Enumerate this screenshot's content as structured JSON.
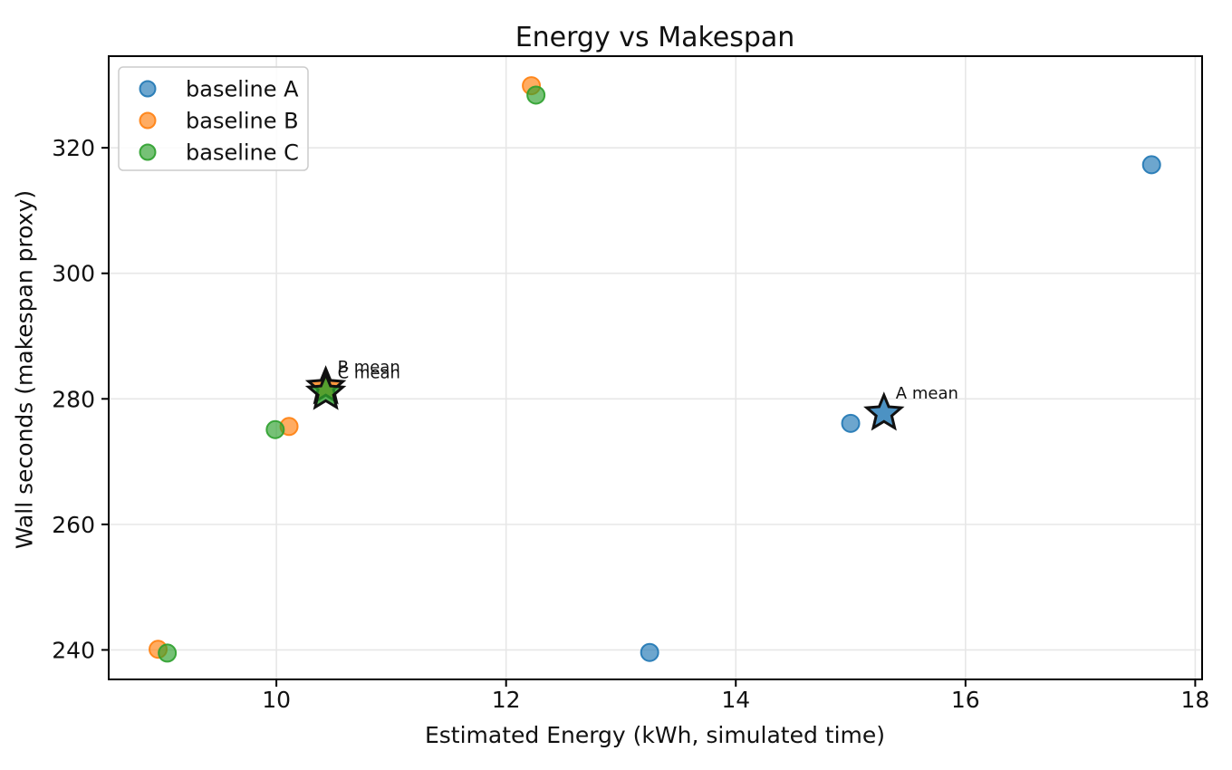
{
  "title": "Energy vs Makespan",
  "chart_data": {
    "type": "scatter",
    "title": "Energy vs Makespan",
    "xlabel": "Estimated Energy (kWh, simulated time)",
    "ylabel": "Wall seconds (makespan proxy)",
    "xlim": [
      8.54,
      18.06
    ],
    "ylim": [
      235.3,
      334.6
    ],
    "xticks": [
      10,
      12,
      14,
      16,
      18
    ],
    "yticks": [
      240,
      260,
      280,
      300,
      320
    ],
    "grid": true,
    "grid_color": "#e7e7e7",
    "legend_position": "upper left",
    "marker_alpha": 0.7,
    "series": [
      {
        "name": "baseline A",
        "color": "#1f77b4",
        "points": [
          [
            13.25,
            239.6
          ],
          [
            15.0,
            276.1
          ],
          [
            17.62,
            317.3
          ]
        ],
        "mean": [
          15.29,
          277.7
        ],
        "mean_label": "A mean"
      },
      {
        "name": "baseline B",
        "color": "#ff7f0e",
        "points": [
          [
            8.97,
            240.1
          ],
          [
            10.11,
            275.6
          ],
          [
            12.22,
            329.9
          ]
        ],
        "mean": [
          10.43,
          281.9
        ],
        "mean_label": "B mean"
      },
      {
        "name": "baseline C",
        "color": "#2ca02c",
        "points": [
          [
            9.05,
            239.5
          ],
          [
            9.99,
            275.1
          ],
          [
            12.26,
            328.4
          ]
        ],
        "mean": [
          10.43,
          281.0
        ],
        "mean_label": "C mean"
      }
    ]
  },
  "legend": {
    "items": [
      "baseline A",
      "baseline B",
      "baseline C"
    ]
  }
}
